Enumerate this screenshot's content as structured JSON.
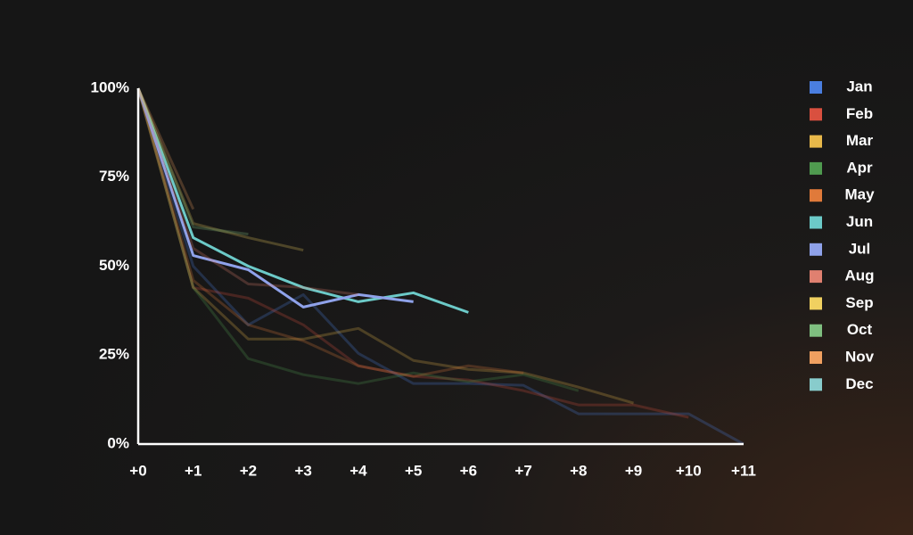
{
  "chart_data": {
    "type": "line",
    "categories": [
      "+0",
      "+1",
      "+2",
      "+3",
      "+4",
      "+5",
      "+6",
      "+7",
      "+8",
      "+9",
      "+10",
      "+11"
    ],
    "ylim": [
      0,
      100
    ],
    "yticks": [
      {
        "value": 0,
        "label": "0%"
      },
      {
        "value": 25,
        "label": "25%"
      },
      {
        "value": 50,
        "label": "50%"
      },
      {
        "value": 75,
        "label": "75%"
      },
      {
        "value": 100,
        "label": "100%"
      }
    ],
    "grid": false,
    "legend": "right",
    "series": [
      {
        "name": "Jan",
        "color": "#4a7ee0",
        "opacity": 0.25,
        "values": [
          100,
          50,
          33.5,
          42,
          25.5,
          17,
          17,
          16.5,
          8.5,
          8.5,
          8.5,
          0
        ]
      },
      {
        "name": "Feb",
        "color": "#d9503f",
        "opacity": 0.25,
        "values": [
          100,
          44,
          41,
          33.5,
          22,
          19,
          18,
          15,
          11,
          11,
          7.5,
          null
        ]
      },
      {
        "name": "Mar",
        "color": "#e8b84a",
        "opacity": 0.25,
        "values": [
          100,
          44,
          29.5,
          29.5,
          32.5,
          23.5,
          21,
          20,
          16,
          11.5,
          null,
          null
        ]
      },
      {
        "name": "Apr",
        "color": "#4f9a4f",
        "opacity": 0.25,
        "values": [
          100,
          44,
          24,
          19.5,
          17,
          20,
          17.5,
          19.5,
          15,
          null,
          null,
          null
        ]
      },
      {
        "name": "May",
        "color": "#e07a3a",
        "opacity": 0.25,
        "values": [
          100,
          46,
          33.5,
          29,
          22,
          19,
          22,
          20,
          null,
          null,
          null,
          null
        ]
      },
      {
        "name": "Jun",
        "color": "#6ccac8",
        "opacity": 1,
        "values": [
          100,
          58,
          50,
          44,
          40,
          42.5,
          37,
          null,
          null,
          null,
          null,
          null
        ]
      },
      {
        "name": "Jul",
        "color": "#8fa2ea",
        "opacity": 1,
        "values": [
          100,
          53,
          49,
          38.5,
          42,
          40,
          null,
          null,
          null,
          null,
          null,
          null
        ]
      },
      {
        "name": "Aug",
        "color": "#e08070",
        "opacity": 0.25,
        "values": [
          100,
          55,
          45,
          44,
          42,
          null,
          null,
          null,
          null,
          null,
          null,
          null
        ]
      },
      {
        "name": "Sep",
        "color": "#f0d060",
        "opacity": 0.25,
        "values": [
          100,
          62,
          58,
          54.5,
          null,
          null,
          null,
          null,
          null,
          null,
          null,
          null
        ]
      },
      {
        "name": "Oct",
        "color": "#7fbf80",
        "opacity": 0.25,
        "values": [
          100,
          61,
          59,
          null,
          null,
          null,
          null,
          null,
          null,
          null,
          null,
          null
        ]
      },
      {
        "name": "Nov",
        "color": "#f0a060",
        "opacity": 0.25,
        "values": [
          100,
          66,
          null,
          null,
          null,
          null,
          null,
          null,
          null,
          null,
          null,
          null
        ]
      },
      {
        "name": "Dec",
        "color": "#88cccc",
        "opacity": 0.25,
        "values": [
          100,
          null,
          null,
          null,
          null,
          null,
          null,
          null,
          null,
          null,
          null,
          null
        ]
      }
    ]
  }
}
